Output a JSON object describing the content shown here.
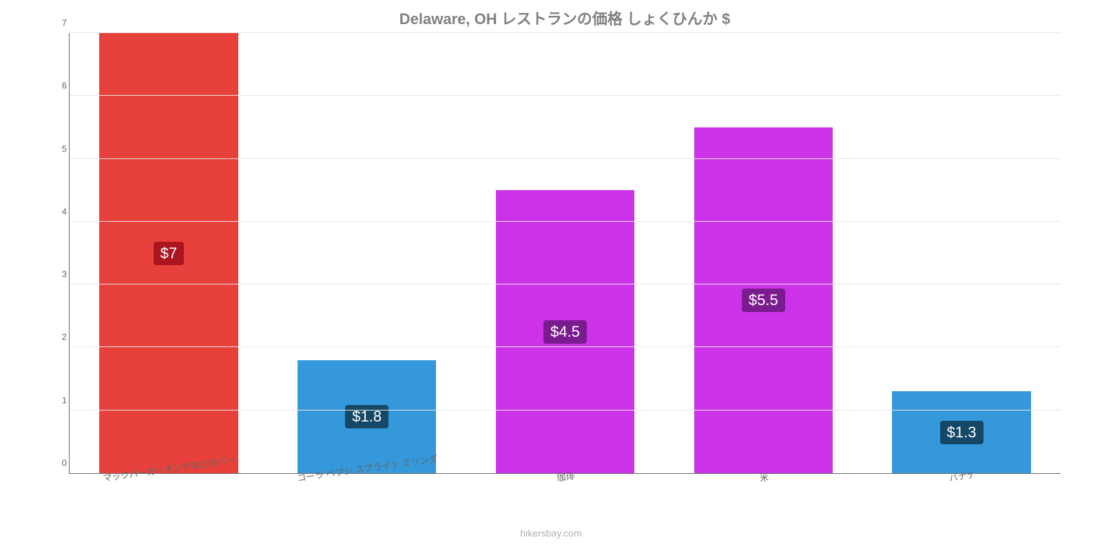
{
  "chart": {
    "type": "bar",
    "title": "Delaware, OH レストランの価格 しょくひんか $",
    "title_fontsize": 22,
    "title_color": "#808080",
    "background_color": "#ffffff",
    "grid_color": "#e6e6e6",
    "axis_color": "#666666",
    "ylim": [
      0,
      7
    ],
    "ytick_step": 1,
    "yticks": [
      "0",
      "1",
      "2",
      "3",
      "4",
      "5",
      "6",
      "7"
    ],
    "bar_width_pct": 70,
    "label_fontsize": 13,
    "label_color": "#666666",
    "label_rotation_deg": -8,
    "value_badge_fontsize": 22,
    "value_badge_text_color": "#ffffff",
    "categories": [
      "マックバーガーキングなどのバー",
      "コーラ ペプシ スプライト ミリンダ",
      "珈琲",
      "米",
      "バナナ"
    ],
    "values": [
      7,
      1.8,
      4.5,
      5.5,
      1.3
    ],
    "display_values": [
      "$7",
      "$1.8",
      "$4.5",
      "$5.5",
      "$1.3"
    ],
    "bar_colors": [
      "#e8403b",
      "#3498db",
      "#cc33e8",
      "#cc33e8",
      "#3498db"
    ],
    "badge_colors": [
      "#ac1520",
      "#144866",
      "#7a1c8f",
      "#7a1c8f",
      "#144866"
    ],
    "credit": "hikersbay.com",
    "credit_color": "#b0b0b0"
  }
}
